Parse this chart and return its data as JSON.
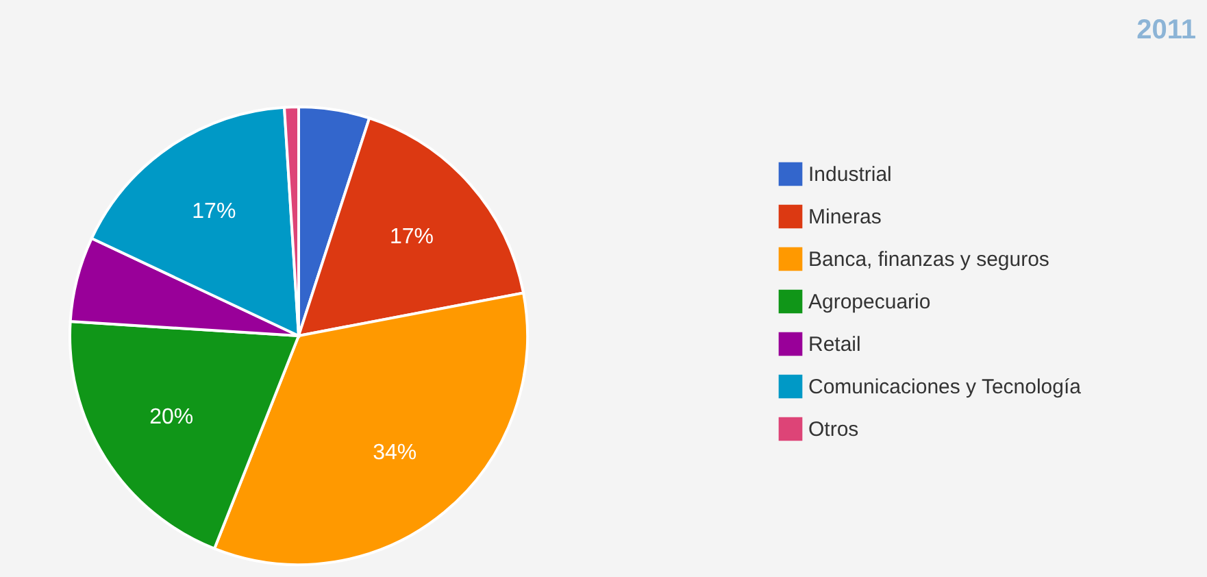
{
  "chart_data": {
    "type": "pie",
    "title": "2011",
    "legend": "right",
    "categories": [
      "Industrial",
      "Mineras",
      "Banca, finanzas y seguros",
      "Agropecuario",
      "Retail",
      "Comunicaciones y Tecnología",
      "Otros"
    ],
    "values": [
      5,
      17,
      34,
      20,
      6,
      17,
      1
    ],
    "colors": [
      "#3366cc",
      "#dc3912",
      "#ff9900",
      "#109618",
      "#990099",
      "#0099c6",
      "#dd4477"
    ],
    "value_labels": [
      null,
      "17%",
      "34%",
      "20%",
      null,
      "17%",
      null
    ]
  }
}
